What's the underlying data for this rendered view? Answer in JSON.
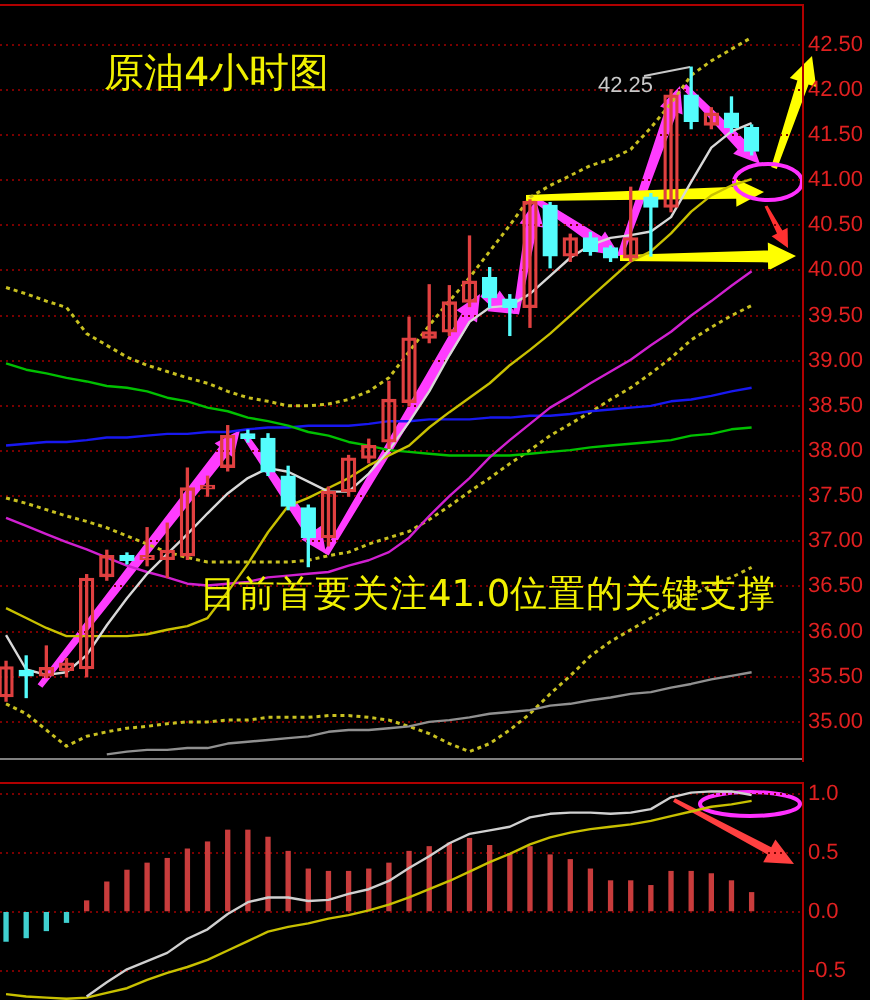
{
  "chart_data": [
    {
      "type": "candlestick",
      "title": "原油4小时图",
      "categories": [
        null,
        null,
        null,
        null,
        null,
        null,
        null,
        null,
        null,
        null,
        null,
        null,
        null,
        null,
        null,
        null,
        null,
        null,
        null,
        null,
        null,
        null,
        null,
        null,
        null,
        null,
        null,
        null,
        null,
        null,
        null,
        null,
        null,
        null,
        null,
        null,
        null,
        null
      ],
      "ohlc": [
        [
          35.28,
          35.67,
          35.23,
          35.61
        ],
        [
          35.57,
          35.73,
          35.27,
          35.51
        ],
        [
          35.51,
          35.84,
          35.49,
          35.6
        ],
        [
          35.57,
          35.7,
          35.5,
          35.65
        ],
        [
          35.59,
          36.63,
          35.5,
          36.59
        ],
        [
          36.61,
          36.9,
          36.57,
          36.84
        ],
        [
          36.84,
          36.87,
          36.75,
          36.79
        ],
        [
          36.8,
          37.15,
          36.73,
          36.84
        ],
        [
          36.8,
          37.2,
          36.6,
          36.9
        ],
        [
          36.84,
          37.81,
          36.8,
          37.59
        ],
        [
          37.58,
          37.72,
          37.5,
          37.62
        ],
        [
          37.82,
          38.28,
          37.78,
          38.17
        ],
        [
          38.19,
          38.23,
          38.1,
          38.14
        ],
        [
          38.14,
          38.19,
          37.73,
          37.77
        ],
        [
          37.72,
          37.83,
          37.35,
          37.39
        ],
        [
          37.37,
          37.4,
          36.72,
          37.04
        ],
        [
          37.04,
          37.6,
          36.95,
          37.55
        ],
        [
          37.55,
          37.95,
          37.5,
          37.92
        ],
        [
          37.92,
          38.13,
          37.87,
          38.06
        ],
        [
          38.1,
          38.77,
          38.03,
          38.57
        ],
        [
          38.54,
          39.48,
          38.5,
          39.25
        ],
        [
          39.25,
          39.84,
          39.2,
          39.32
        ],
        [
          39.32,
          39.83,
          39.28,
          39.65
        ],
        [
          39.65,
          40.38,
          39.6,
          39.88
        ],
        [
          39.92,
          40.03,
          39.59,
          39.7
        ],
        [
          39.68,
          39.73,
          39.28,
          39.59
        ],
        [
          39.59,
          40.78,
          39.37,
          40.76
        ],
        [
          40.72,
          40.75,
          40.03,
          40.16
        ],
        [
          40.16,
          40.4,
          40.1,
          40.36
        ],
        [
          40.36,
          40.42,
          40.17,
          40.21
        ],
        [
          40.25,
          40.27,
          40.1,
          40.14
        ],
        [
          40.14,
          40.92,
          40.1,
          40.36
        ],
        [
          40.81,
          40.85,
          40.16,
          40.7
        ],
        [
          40.7,
          42,
          40.65,
          41.94
        ],
        [
          41.94,
          42.25,
          41.57,
          41.65
        ],
        [
          41.61,
          41.8,
          41.57,
          41.74
        ],
        [
          41.74,
          41.92,
          41.53,
          41.58
        ],
        [
          41.58,
          41.61,
          41.28,
          41.32
        ]
      ],
      "colors": [
        "#e04040",
        "#54fcfc",
        "#e04040",
        "#e04040",
        "#e04040",
        "#e04040",
        "#54fcfc",
        "#e04040",
        "#e04040",
        "#e04040",
        "#e04040",
        "#e04040",
        "#54fcfc",
        "#54fcfc",
        "#54fcfc",
        "#54fcfc",
        "#e04040",
        "#e04040",
        "#e04040",
        "#e04040",
        "#e04040",
        "#e04040",
        "#e04040",
        "#e04040",
        "#54fcfc",
        "#54fcfc",
        "#e04040",
        "#54fcfc",
        "#e04040",
        "#54fcfc",
        "#54fcfc",
        "#e04040",
        "#54fcfc",
        "#e04040",
        "#54fcfc",
        "#e04040",
        "#54fcfc",
        "#54fcfc"
      ],
      "series": [
        {
          "type": "line",
          "color": "#d8d8d8",
          "values": [
            35.96,
            35.58,
            35.52,
            35.55,
            35.74,
            36.07,
            36.37,
            36.64,
            36.86,
            37.08,
            37.31,
            37.53,
            37.7,
            37.81,
            37.77,
            37.66,
            37.55,
            37.55,
            37.75,
            38.01,
            38.32,
            38.66,
            39.06,
            39.43,
            39.59,
            39.61,
            39.74,
            39.94,
            40.14,
            40.28,
            40.36,
            40.39,
            40.43,
            40.59,
            40.98,
            41.36,
            41.54,
            41.63
          ]
        },
        {
          "type": "line",
          "color": "#c8c000",
          "values": [
            36.26,
            36.15,
            36.04,
            35.95,
            35.95,
            35.95,
            35.95,
            35.97,
            36.02,
            36.06,
            36.15,
            36.44,
            36.75,
            37.1,
            37.39,
            37.48,
            37.59,
            37.7,
            37.84,
            37.95,
            38.06,
            38.26,
            38.43,
            38.59,
            38.75,
            38.95,
            39.12,
            39.3,
            39.5,
            39.7,
            39.9,
            40.1,
            40.21,
            40.41,
            40.65,
            40.83,
            40.94,
            41.01
          ]
        },
        {
          "type": "line",
          "color": "#d020d0",
          "values": [
            37.26,
            37.17,
            37.08,
            36.99,
            36.91,
            36.82,
            36.73,
            36.66,
            36.6,
            36.53,
            36.51,
            36.53,
            36.55,
            36.6,
            36.62,
            36.64,
            36.66,
            36.73,
            36.79,
            36.88,
            37.04,
            37.28,
            37.5,
            37.7,
            37.93,
            38.12,
            38.3,
            38.48,
            38.61,
            38.75,
            38.88,
            39.01,
            39.17,
            39.32,
            39.5,
            39.66,
            39.83,
            39.99
          ]
        },
        {
          "type": "line",
          "color": "#00c000",
          "values": [
            38.97,
            38.9,
            38.86,
            38.81,
            38.77,
            38.72,
            38.7,
            38.66,
            38.59,
            38.55,
            38.48,
            38.44,
            38.37,
            38.33,
            38.28,
            38.21,
            38.17,
            38.1,
            38.06,
            38.01,
            37.99,
            37.97,
            37.95,
            37.95,
            37.95,
            37.95,
            37.97,
            37.99,
            38.01,
            38.04,
            38.06,
            38.08,
            38.1,
            38.12,
            38.17,
            38.19,
            38.24,
            38.26
          ]
        },
        {
          "type": "line",
          "color": "#1818f0",
          "values": [
            38.06,
            38.08,
            38.1,
            38.1,
            38.12,
            38.15,
            38.15,
            38.17,
            38.19,
            38.19,
            38.21,
            38.21,
            38.24,
            38.26,
            38.26,
            38.28,
            38.28,
            38.28,
            38.3,
            38.33,
            38.33,
            38.35,
            38.35,
            38.35,
            38.37,
            38.37,
            38.39,
            38.39,
            38.41,
            38.44,
            38.46,
            38.48,
            38.5,
            38.55,
            38.57,
            38.61,
            38.66,
            38.7
          ]
        },
        {
          "type": "line",
          "color": "#909090",
          "values": [
            null,
            null,
            null,
            null,
            null,
            34.64,
            34.67,
            34.69,
            34.69,
            34.71,
            34.71,
            34.76,
            34.78,
            34.8,
            34.82,
            34.84,
            34.89,
            34.91,
            34.91,
            34.93,
            34.95,
            35,
            35.02,
            35.05,
            35.09,
            35.11,
            35.13,
            35.18,
            35.2,
            35.24,
            35.27,
            35.31,
            35.33,
            35.38,
            35.42,
            35.47,
            35.51,
            35.55
          ]
        },
        {
          "type": "line",
          "color": "#c8c020",
          "line_style": "dotted",
          "values": [
            39.81,
            39.74,
            39.66,
            39.59,
            39.3,
            39.17,
            39.04,
            38.95,
            38.88,
            38.81,
            38.75,
            38.66,
            38.59,
            38.55,
            38.5,
            38.5,
            38.52,
            38.57,
            38.66,
            38.81,
            39.1,
            39.39,
            39.66,
            39.92,
            40.21,
            40.5,
            40.81,
            40.94,
            41.05,
            41.16,
            41.23,
            41.34,
            41.58,
            41.85,
            42.16,
            42.32,
            42.45,
            42.58
          ]
        },
        {
          "type": "line",
          "color": "#c8c020",
          "line_style": "dotted",
          "values": [
            37.48,
            37.42,
            37.35,
            37.28,
            37.22,
            37.15,
            37.06,
            36.97,
            36.88,
            36.82,
            36.77,
            36.77,
            36.77,
            36.77,
            36.77,
            36.79,
            36.84,
            36.88,
            36.97,
            37.04,
            37.11,
            37.24,
            37.39,
            37.55,
            37.7,
            37.86,
            38.01,
            38.17,
            38.3,
            38.43,
            38.57,
            38.7,
            38.86,
            39.03,
            39.23,
            39.37,
            39.5,
            39.61
          ]
        },
        {
          "type": "line",
          "color": "#c8c020",
          "line_style": "dotted",
          "values": [
            35.2,
            35.09,
            34.91,
            34.73,
            34.84,
            34.89,
            34.93,
            34.95,
            34.98,
            35,
            35,
            35.02,
            35.02,
            35.05,
            35.05,
            35.05,
            35.07,
            35.07,
            35.05,
            35.02,
            34.95,
            34.87,
            34.76,
            34.67,
            34.76,
            34.91,
            35.09,
            35.31,
            35.51,
            35.73,
            35.89,
            36.02,
            36.15,
            36.28,
            36.4,
            36.51,
            36.6,
            36.71
          ]
        }
      ],
      "ylim": [
        34.6,
        42.95
      ],
      "yticks": [
        {
          "value": 35,
          "label": "35.00"
        },
        {
          "value": 35.5,
          "label": "35.50"
        },
        {
          "value": 36,
          "label": "36.00"
        },
        {
          "value": 36.5,
          "label": "36.50"
        },
        {
          "value": 37,
          "label": "37.00"
        },
        {
          "value": 37.5,
          "label": "37.50"
        },
        {
          "value": 38,
          "label": "38.00"
        },
        {
          "value": 38.5,
          "label": "38.50"
        },
        {
          "value": 39,
          "label": "39.00"
        },
        {
          "value": 39.5,
          "label": "39.50"
        },
        {
          "value": 40,
          "label": "40.00"
        },
        {
          "value": 40.5,
          "label": "40.50"
        },
        {
          "value": 41,
          "label": "41.00"
        },
        {
          "value": 41.5,
          "label": "41.50"
        },
        {
          "value": 42,
          "label": "42.00"
        },
        {
          "value": 42.5,
          "label": "42.50"
        }
      ],
      "grid": "y",
      "annotations": [
        "目前首要关注41.0位置的关键支撑",
        "42.25"
      ]
    },
    {
      "type": "bar",
      "categories": [
        null,
        null,
        null,
        null,
        null,
        null,
        null,
        null,
        null,
        null,
        null,
        null,
        null,
        null,
        null,
        null,
        null,
        null,
        null,
        null,
        null,
        null,
        null,
        null,
        null,
        null,
        null,
        null,
        null,
        null,
        null,
        null,
        null,
        null,
        null,
        null,
        null,
        null
      ],
      "series": [
        {
          "type": "bar",
          "colors": [
            "#40d0d0",
            "#40d0d0",
            "#40d0d0",
            "#40d0d0",
            "#c83c3c",
            "#c83c3c",
            "#c83c3c",
            "#c83c3c",
            "#c83c3c",
            "#c83c3c",
            "#c83c3c",
            "#c83c3c",
            "#c83c3c",
            "#c83c3c",
            "#c83c3c",
            "#c83c3c",
            "#c83c3c",
            "#c83c3c",
            "#c83c3c",
            "#c83c3c",
            "#c83c3c",
            "#c83c3c",
            "#c83c3c",
            "#c83c3c",
            "#c83c3c",
            "#c83c3c",
            "#c83c3c",
            "#c83c3c",
            "#c83c3c",
            "#c83c3c",
            "#c83c3c",
            "#c83c3c",
            "#c83c3c",
            "#c83c3c",
            "#c83c3c",
            "#c83c3c",
            "#c83c3c",
            "#c83c3c"
          ],
          "values": [
            -0.25,
            -0.22,
            -0.16,
            -0.09,
            0.09,
            0.25,
            0.35,
            0.41,
            0.45,
            0.53,
            0.59,
            0.69,
            0.69,
            0.63,
            0.51,
            0.36,
            0.34,
            0.34,
            0.36,
            0.41,
            0.51,
            0.55,
            0.58,
            0.62,
            0.56,
            0.49,
            0.55,
            0.48,
            0.44,
            0.36,
            0.26,
            0.26,
            0.22,
            0.34,
            0.34,
            0.32,
            0.26,
            0.16
          ]
        },
        {
          "type": "line",
          "color": "#d0d0d0",
          "values": [
            null,
            null,
            null,
            null,
            -0.72,
            -0.6,
            -0.49,
            -0.42,
            -0.35,
            -0.23,
            -0.15,
            -0.02,
            0.08,
            0.12,
            0.12,
            0.09,
            0.1,
            0.15,
            0.19,
            0.26,
            0.37,
            0.47,
            0.58,
            0.66,
            0.69,
            0.72,
            0.8,
            0.83,
            0.84,
            0.84,
            0.83,
            0.84,
            0.87,
            0.97,
            1.01,
            1.02,
            1.02,
            0.99
          ]
        },
        {
          "type": "line",
          "color": "#c8c000",
          "values": [
            -0.7,
            -0.72,
            -0.73,
            -0.74,
            -0.73,
            -0.69,
            -0.65,
            -0.58,
            -0.52,
            -0.47,
            -0.41,
            -0.33,
            -0.25,
            -0.17,
            -0.13,
            -0.1,
            -0.06,
            -0.03,
            0.01,
            0.06,
            0.12,
            0.19,
            0.26,
            0.34,
            0.42,
            0.49,
            0.57,
            0.63,
            0.67,
            0.7,
            0.72,
            0.74,
            0.77,
            0.81,
            0.85,
            0.89,
            0.91,
            0.94
          ]
        }
      ],
      "ylim": [
        -0.75,
        1.1
      ],
      "yticks": [
        {
          "value": -0.5,
          "label": "-0.5"
        },
        {
          "value": 0,
          "label": "0.0"
        },
        {
          "value": 0.5,
          "label": "0.5"
        },
        {
          "value": 1,
          "label": "1.0"
        }
      ],
      "grid": "y"
    }
  ]
}
